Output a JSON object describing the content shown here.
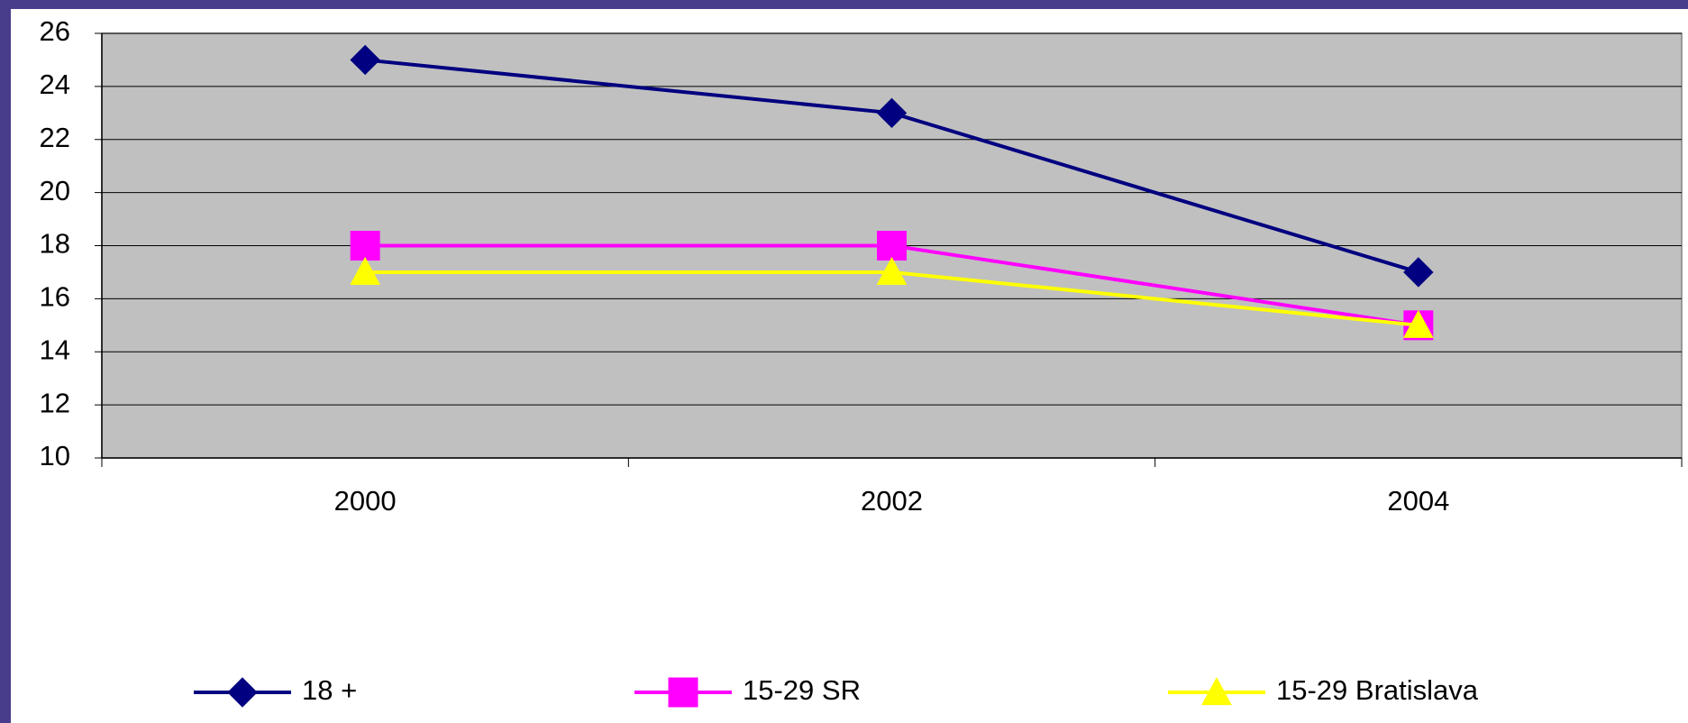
{
  "chart_data": {
    "type": "line",
    "categories": [
      "2000",
      "2002",
      "2004"
    ],
    "series": [
      {
        "name": "18 +",
        "color": "#000080",
        "marker": "diamond",
        "values": [
          25,
          23,
          17
        ]
      },
      {
        "name": "15-29 SR",
        "color": "#ff00ff",
        "marker": "square",
        "values": [
          18,
          18,
          15
        ]
      },
      {
        "name": "15-29 Bratislava",
        "color": "#ffff00",
        "marker": "triangle",
        "values": [
          17,
          17,
          15
        ]
      }
    ],
    "ylim": [
      10,
      26
    ],
    "yticks": [
      10,
      12,
      14,
      16,
      18,
      20,
      22,
      24,
      26
    ],
    "grid": true,
    "legend": "bottom"
  }
}
